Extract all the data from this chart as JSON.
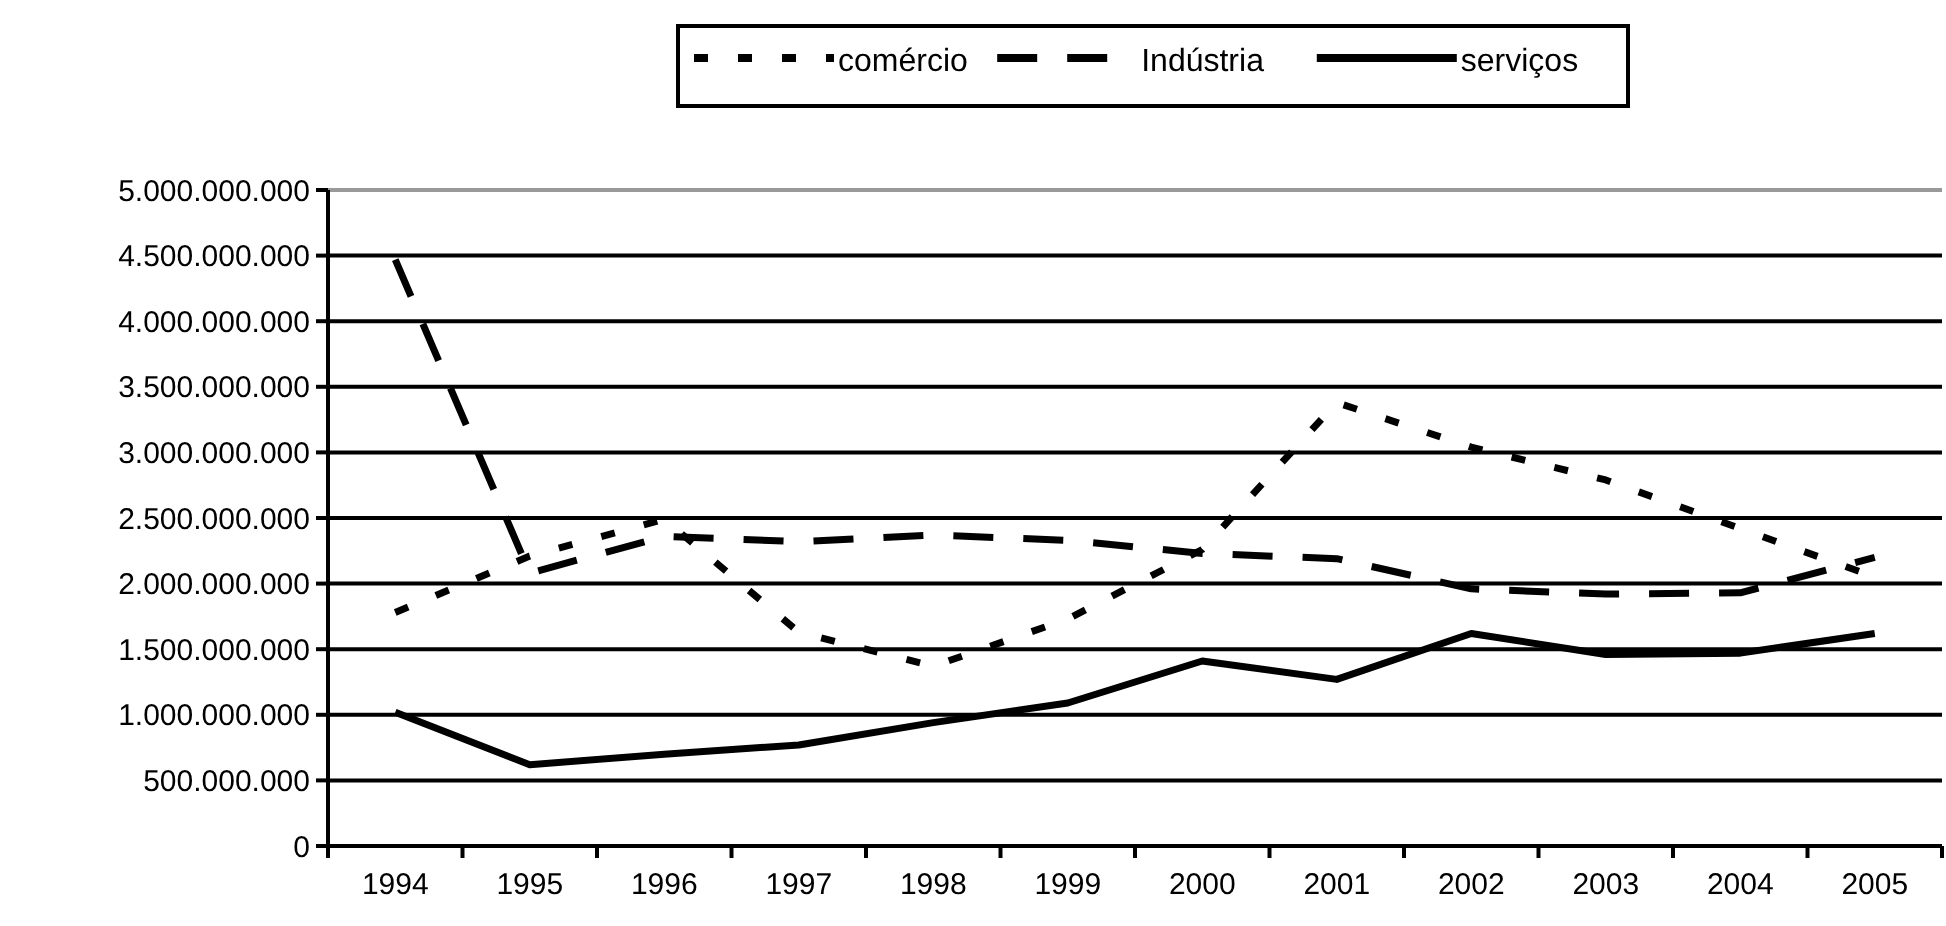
{
  "chart_data": {
    "type": "line",
    "categories": [
      "1994",
      "1995",
      "1996",
      "1997",
      "1998",
      "1999",
      "2000",
      "2001",
      "2002",
      "2003",
      "2004",
      "2005"
    ],
    "series": [
      {
        "name": "comércio",
        "color": "#000000",
        "line_style": "dotted",
        "values": [
          1780000000,
          2210000000,
          2490000000,
          1630000000,
          1370000000,
          1730000000,
          2260000000,
          3380000000,
          3040000000,
          2790000000,
          2420000000,
          2050000000
        ]
      },
      {
        "name": "Indústria",
        "color": "#000000",
        "line_style": "dashed",
        "values": [
          4470000000,
          2080000000,
          2360000000,
          2320000000,
          2370000000,
          2330000000,
          2230000000,
          2190000000,
          1960000000,
          1920000000,
          1930000000,
          2200000000
        ]
      },
      {
        "name": "serviços",
        "color": "#000000",
        "line_style": "solid",
        "values": [
          1020000000,
          620000000,
          700000000,
          770000000,
          940000000,
          1090000000,
          1410000000,
          1270000000,
          1620000000,
          1460000000,
          1470000000,
          1620000000
        ]
      }
    ],
    "ylim": [
      0,
      5000000000
    ],
    "yticks": [
      0,
      {
        "value": 500000000,
        "label": "500.000.000"
      },
      {
        "value": 1000000000,
        "label": "1.000.000.000"
      },
      {
        "value": 1500000000,
        "label": "1.500.000.000"
      },
      {
        "value": 2000000000,
        "label": "2.000.000.000"
      },
      {
        "value": 2500000000,
        "label": "2.500.000.000"
      },
      {
        "value": 3000000000,
        "label": "3.000.000.000"
      },
      {
        "value": 3500000000,
        "label": "3.500.000.000"
      },
      {
        "value": 4000000000,
        "label": "4.000.000.000"
      },
      {
        "value": 4500000000,
        "label": "4.500.000.000"
      },
      {
        "value": 5000000000,
        "label": "5.000.000.000"
      }
    ],
    "grid": "y",
    "legend": "top",
    "marker": "none"
  }
}
